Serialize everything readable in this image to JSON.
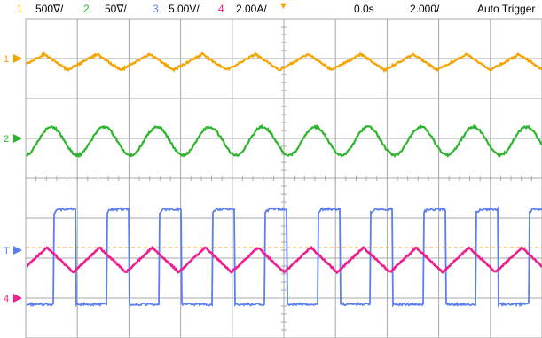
{
  "status_bar": {
    "channels": [
      {
        "number": "1",
        "scale": "500∇/",
        "color": "#f5a300"
      },
      {
        "number": "2",
        "scale": "50∇/",
        "color": "#2db52d"
      },
      {
        "number": "3",
        "scale": "5.00V/",
        "color": "#5b7ff0"
      },
      {
        "number": "4",
        "scale": "2.00A/",
        "color": "#ee1f8e"
      }
    ],
    "time_offset": "0.0s",
    "timebase": "2.000̴/",
    "trigger_mode": "Auto Trigger"
  },
  "display": {
    "graticule_color": "#a8a8a8",
    "trigger_level_color": "#f5a300",
    "ground_markers": [
      {
        "label": "1",
        "color": "#f5a300"
      },
      {
        "label": "2",
        "color": "#2db52d"
      },
      {
        "label": "T",
        "color": "#5b7ff0"
      },
      {
        "label": "4",
        "color": "#ee1f8e"
      }
    ]
  }
}
